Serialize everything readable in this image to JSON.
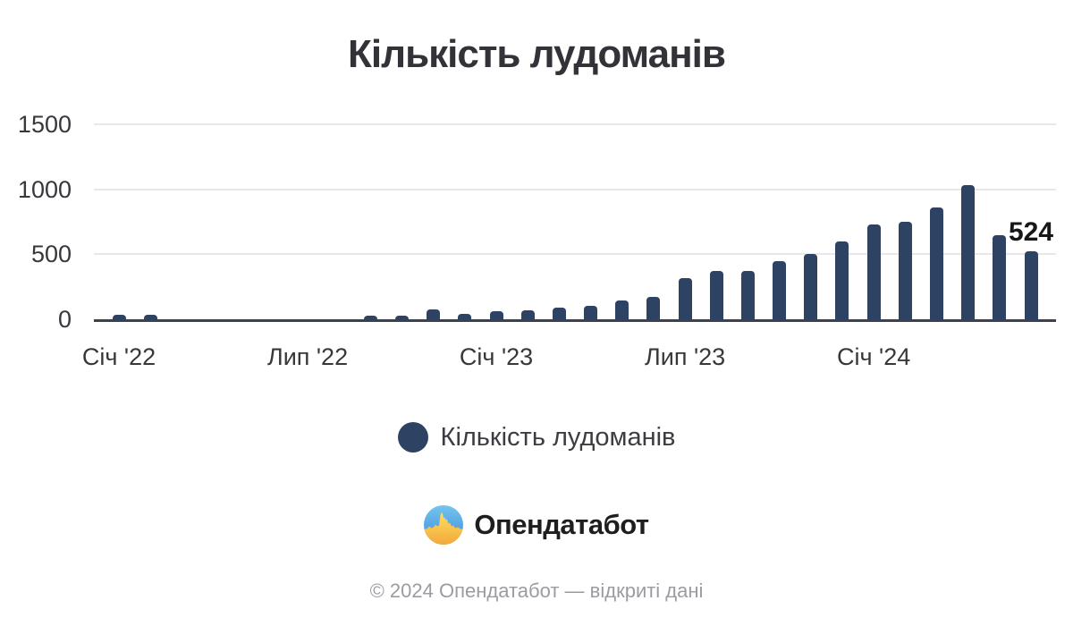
{
  "title": "Кількість лудоманів",
  "legend": {
    "label": "Кількість лудоманів",
    "marker_color": "#2e4263"
  },
  "logo": {
    "text": "Опендатабот"
  },
  "footer": "© 2024 Опендатабот — відкриті дані",
  "colors": {
    "bar": "#2e4263",
    "axis": "#3a4150",
    "grid": "#e8e8ea",
    "blue_top": "#74c5ef",
    "blue_bottom": "#3e8bd9",
    "yellow_top": "#ffdf5e",
    "yellow_bottom": "#f2a93b"
  },
  "chart_data": {
    "type": "bar",
    "title": "Кількість лудоманів",
    "categories": [
      "2022-01",
      "2022-02",
      "2022-03",
      "2022-04",
      "2022-05",
      "2022-06",
      "2022-07",
      "2022-08",
      "2022-09",
      "2022-10",
      "2022-11",
      "2022-12",
      "2023-01",
      "2023-02",
      "2023-03",
      "2023-04",
      "2023-05",
      "2023-06",
      "2023-07",
      "2023-08",
      "2023-09",
      "2023-10",
      "2023-11",
      "2023-12",
      "2024-01",
      "2024-02",
      "2024-03",
      "2024-04",
      "2024-05",
      "2024-06"
    ],
    "values": [
      32,
      32,
      0,
      0,
      0,
      0,
      0,
      0,
      25,
      27,
      78,
      42,
      62,
      68,
      90,
      103,
      145,
      170,
      318,
      375,
      372,
      445,
      505,
      600,
      732,
      750,
      860,
      1030,
      650,
      524
    ],
    "series_name": "Кількість лудоманів",
    "xlabel": "",
    "ylabel": "",
    "ylim": [
      0,
      1500
    ],
    "y_ticks": [
      0,
      500,
      1000,
      1500
    ],
    "x_tick_labels": [
      {
        "index": 0,
        "label": "Січ '22"
      },
      {
        "index": 6,
        "label": "Лип '22"
      },
      {
        "index": 12,
        "label": "Січ '23"
      },
      {
        "index": 18,
        "label": "Лип '23"
      },
      {
        "index": 24,
        "label": "Січ '24"
      }
    ],
    "grid": true,
    "legend_position": "bottom",
    "annotations": [
      {
        "index": 29,
        "category": "2024-06",
        "value": 524,
        "text": "524"
      }
    ]
  }
}
